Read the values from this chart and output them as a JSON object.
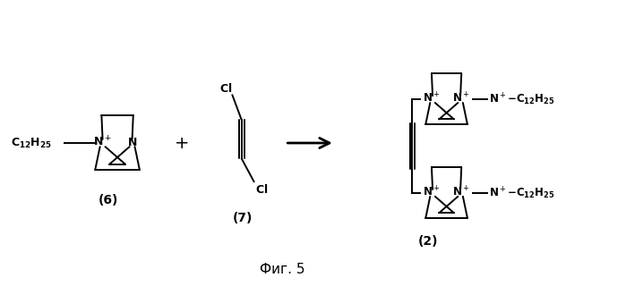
{
  "bg_color": "#ffffff",
  "line_color": "#000000",
  "figsize": [
    6.99,
    3.2
  ],
  "dpi": 100,
  "title": "Фиг. 5",
  "compound6_label": "(6)",
  "compound7_label": "(7)",
  "compound2_label": "(2)"
}
